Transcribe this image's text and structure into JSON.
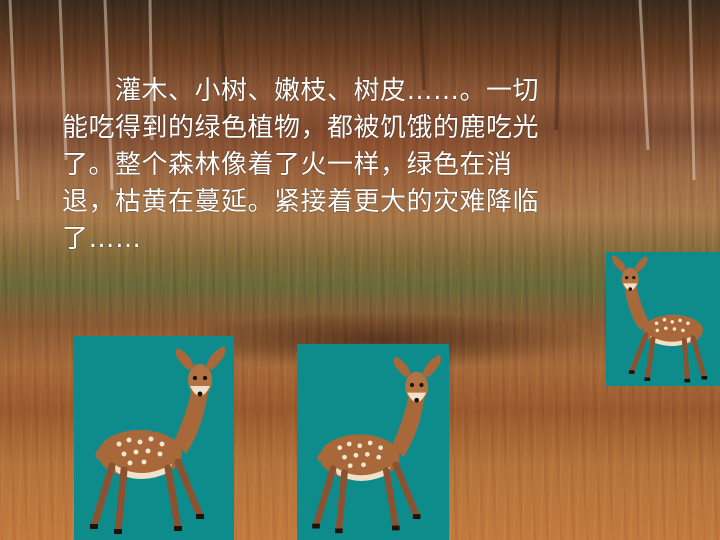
{
  "passage": {
    "lines": [
      "　　灌木、小树、嫩枝、树皮……。一切",
      "能吃得到的绿色植物，都被饥饿的鹿吃光",
      "了。整个森林像着了火一样，绿色在消",
      "退，枯黄在蔓延。紧接着更大的灾难降临",
      "了……"
    ]
  },
  "colors": {
    "card_background": "#0e8c8c",
    "text": "#ffffff"
  },
  "icons": [
    "deer-icon",
    "deer-icon",
    "deer-icon"
  ]
}
